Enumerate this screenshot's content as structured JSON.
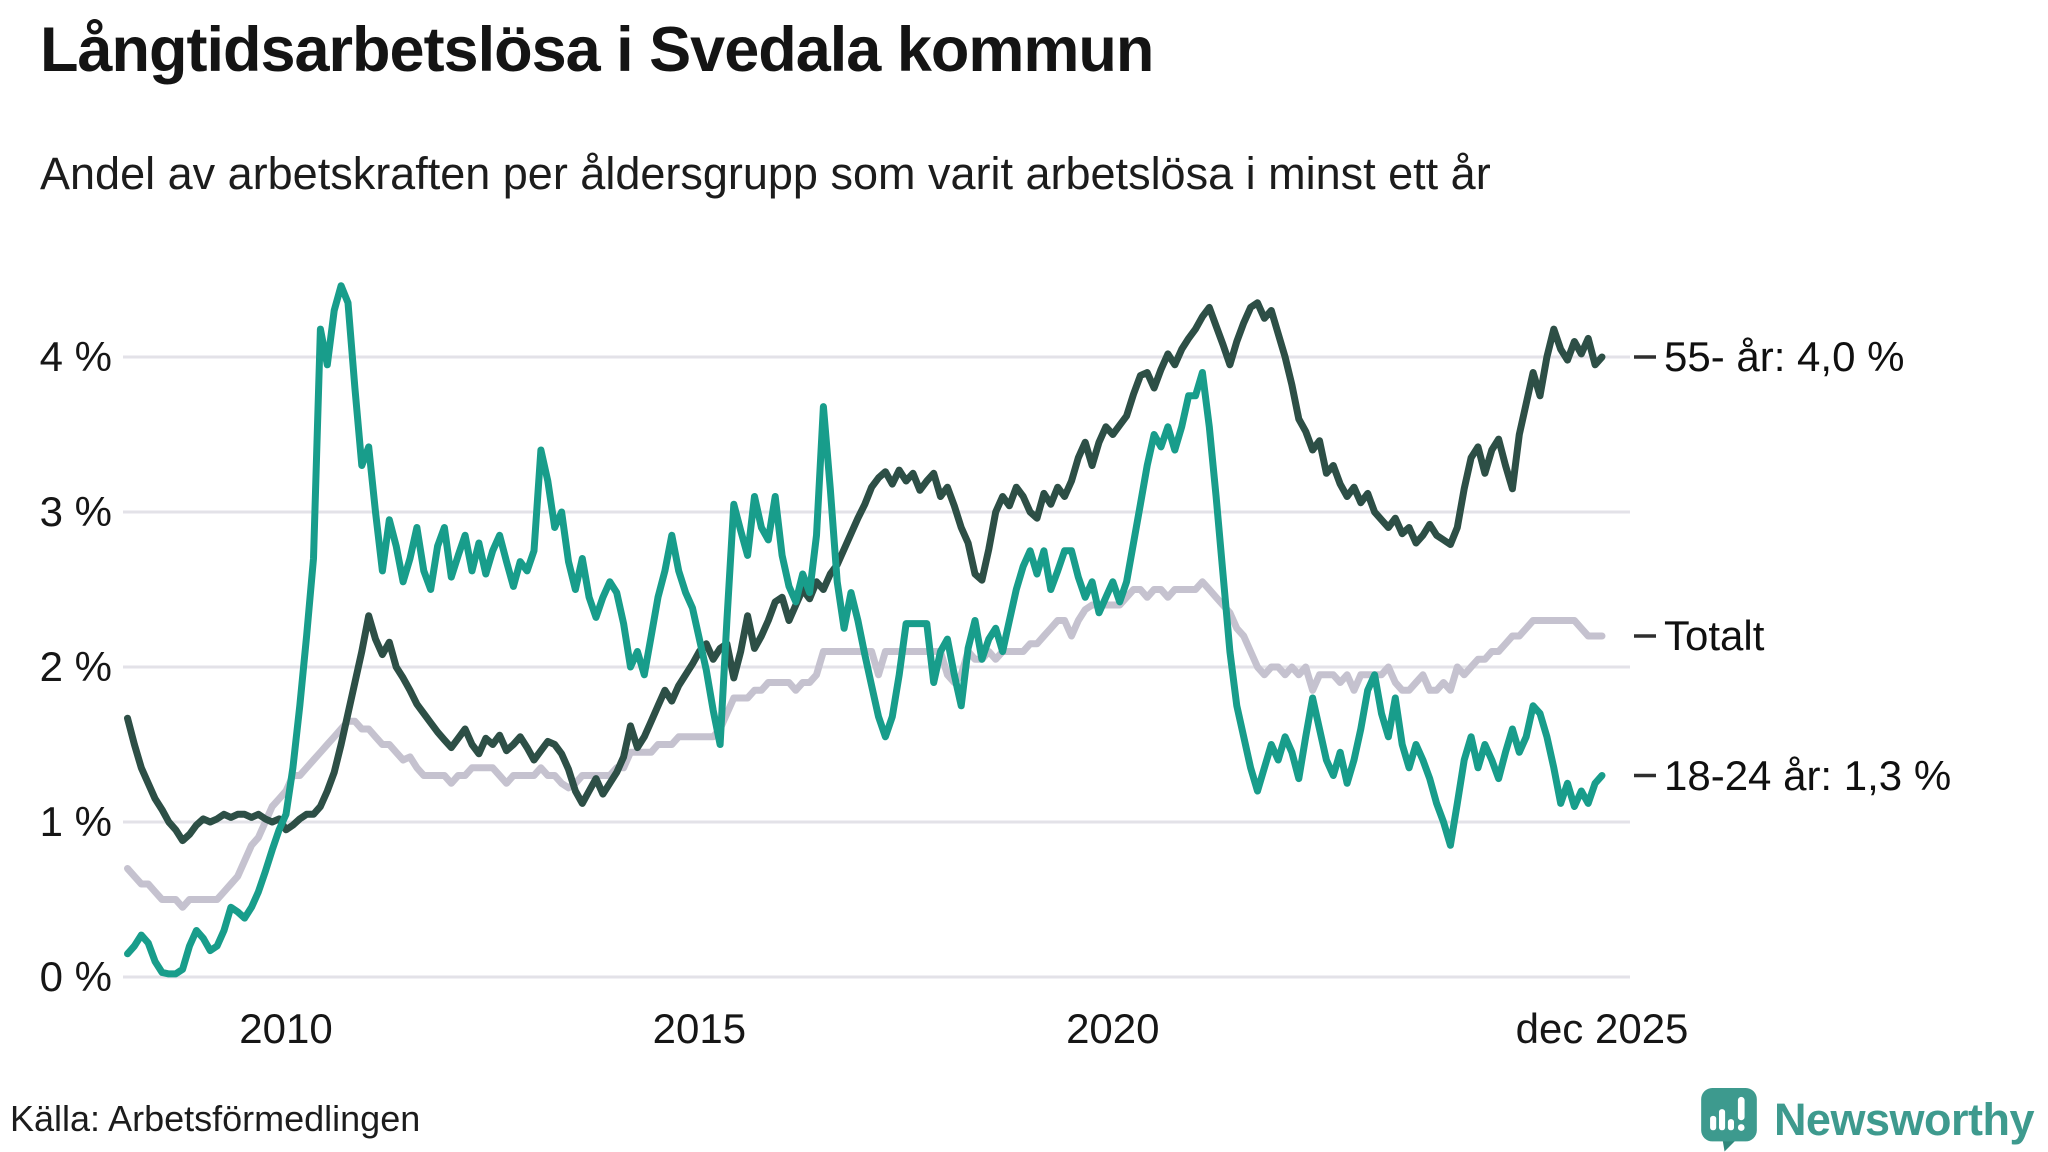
{
  "header": {
    "title": "Långtidsarbetslösa i Svedala kommun",
    "subtitle": "Andel av arbetskraften per åldersgrupp som varit arbetslösa i minst ett år"
  },
  "footer": {
    "source": "Källa: Arbetsförmedlingen",
    "brand": "Newsworthy"
  },
  "colors": {
    "age_55": "#2d4f46",
    "age_18_24": "#189d8b",
    "total": "#c5c2cf",
    "gridline": "#e3e2e8",
    "tick_dash": "#2f2f2f",
    "logo_teal": "#3d9a8e",
    "logo_tail": "#2f887c"
  },
  "chart_data": {
    "type": "line",
    "title": "Långtidsarbetslösa i Svedala kommun",
    "subtitle": "Andel av arbetskraften per åldersgrupp som varit arbetslösa i minst ett år",
    "x_start": "2008-02",
    "x_end": "2025-12",
    "x_step": "month",
    "ylim": [
      0,
      4.6
    ],
    "grid": true,
    "legend_position": "right-of-line-ends",
    "y_ticks": [
      {
        "label": "4 %",
        "value": 4
      },
      {
        "label": "3 %",
        "value": 3
      },
      {
        "label": "2 %",
        "value": 2
      },
      {
        "label": "1 %",
        "value": 1
      },
      {
        "label": "0 %",
        "value": 0
      }
    ],
    "x_ticks": [
      {
        "label": "2010",
        "t": 2010.0
      },
      {
        "label": "2015",
        "t": 2015.0
      },
      {
        "label": "2020",
        "t": 2020.0
      },
      {
        "label": "dec 2025",
        "t": 2025.917
      }
    ],
    "series": [
      {
        "name": "55- år",
        "key": "55-ar",
        "end_label": "55- år: 4,0 %",
        "end_value": 4.0,
        "color": "#2d4f46",
        "draw_order": 2,
        "values": [
          1.67,
          1.5,
          1.35,
          1.25,
          1.15,
          1.08,
          1.0,
          0.95,
          0.88,
          0.92,
          0.98,
          1.02,
          1.0,
          1.02,
          1.05,
          1.03,
          1.05,
          1.05,
          1.03,
          1.05,
          1.02,
          1.0,
          1.02,
          0.95,
          0.98,
          1.02,
          1.05,
          1.05,
          1.1,
          1.2,
          1.32,
          1.5,
          1.7,
          1.9,
          2.1,
          2.33,
          2.18,
          2.08,
          2.16,
          2.0,
          1.93,
          1.85,
          1.76,
          1.7,
          1.64,
          1.58,
          1.53,
          1.48,
          1.54,
          1.6,
          1.5,
          1.44,
          1.54,
          1.5,
          1.56,
          1.46,
          1.5,
          1.55,
          1.48,
          1.4,
          1.46,
          1.52,
          1.5,
          1.44,
          1.34,
          1.2,
          1.12,
          1.2,
          1.28,
          1.18,
          1.25,
          1.32,
          1.42,
          1.62,
          1.48,
          1.55,
          1.65,
          1.75,
          1.85,
          1.78,
          1.88,
          1.95,
          2.02,
          2.1,
          2.15,
          2.05,
          2.12,
          2.15,
          1.93,
          2.1,
          2.33,
          2.12,
          2.2,
          2.3,
          2.42,
          2.45,
          2.3,
          2.4,
          2.5,
          2.44,
          2.55,
          2.5,
          2.6,
          2.66,
          2.76,
          2.86,
          2.96,
          3.05,
          3.16,
          3.22,
          3.26,
          3.18,
          3.27,
          3.2,
          3.25,
          3.14,
          3.2,
          3.25,
          3.1,
          3.16,
          3.04,
          2.9,
          2.8,
          2.6,
          2.56,
          2.76,
          3.0,
          3.1,
          3.04,
          3.16,
          3.1,
          3.0,
          2.96,
          3.12,
          3.05,
          3.16,
          3.1,
          3.2,
          3.35,
          3.45,
          3.3,
          3.45,
          3.55,
          3.5,
          3.56,
          3.62,
          3.76,
          3.88,
          3.9,
          3.8,
          3.92,
          4.02,
          3.95,
          4.05,
          4.12,
          4.18,
          4.26,
          4.32,
          4.2,
          4.08,
          3.95,
          4.1,
          4.22,
          4.32,
          4.35,
          4.25,
          4.3,
          4.15,
          4.0,
          3.82,
          3.6,
          3.52,
          3.4,
          3.46,
          3.25,
          3.3,
          3.18,
          3.1,
          3.16,
          3.06,
          3.12,
          3.0,
          2.95,
          2.9,
          2.96,
          2.86,
          2.9,
          2.8,
          2.85,
          2.92,
          2.85,
          2.82,
          2.79,
          2.9,
          3.15,
          3.35,
          3.42,
          3.25,
          3.4,
          3.47,
          3.3,
          3.15,
          3.5,
          3.7,
          3.9,
          3.75,
          4.0,
          4.18,
          4.05,
          3.98,
          4.1,
          4.02,
          4.12,
          3.95,
          4.0
        ]
      },
      {
        "name": "Totalt",
        "key": "totalt",
        "end_label": "Totalt",
        "end_value": 2.2,
        "color": "#c5c2cf",
        "draw_order": 1,
        "values": [
          0.7,
          0.65,
          0.6,
          0.6,
          0.55,
          0.5,
          0.5,
          0.5,
          0.45,
          0.5,
          0.5,
          0.5,
          0.5,
          0.5,
          0.55,
          0.6,
          0.65,
          0.75,
          0.85,
          0.9,
          1.0,
          1.1,
          1.15,
          1.2,
          1.3,
          1.3,
          1.35,
          1.4,
          1.45,
          1.5,
          1.55,
          1.6,
          1.65,
          1.65,
          1.6,
          1.6,
          1.55,
          1.5,
          1.5,
          1.45,
          1.4,
          1.42,
          1.35,
          1.3,
          1.3,
          1.3,
          1.3,
          1.25,
          1.3,
          1.3,
          1.35,
          1.35,
          1.35,
          1.35,
          1.3,
          1.25,
          1.3,
          1.3,
          1.3,
          1.3,
          1.35,
          1.3,
          1.3,
          1.25,
          1.22,
          1.25,
          1.3,
          1.3,
          1.3,
          1.3,
          1.3,
          1.35,
          1.35,
          1.45,
          1.45,
          1.45,
          1.45,
          1.5,
          1.5,
          1.5,
          1.55,
          1.55,
          1.55,
          1.55,
          1.55,
          1.55,
          1.6,
          1.7,
          1.8,
          1.8,
          1.8,
          1.85,
          1.85,
          1.9,
          1.9,
          1.9,
          1.9,
          1.85,
          1.9,
          1.9,
          1.95,
          2.1,
          2.1,
          2.1,
          2.1,
          2.1,
          2.1,
          2.1,
          2.1,
          1.95,
          2.1,
          2.1,
          2.1,
          2.1,
          2.1,
          2.1,
          2.1,
          2.1,
          2.1,
          1.95,
          1.9,
          1.95,
          2.1,
          2.05,
          2.05,
          2.1,
          2.05,
          2.1,
          2.1,
          2.1,
          2.1,
          2.15,
          2.15,
          2.2,
          2.25,
          2.3,
          2.3,
          2.2,
          2.3,
          2.37,
          2.4,
          2.4,
          2.4,
          2.4,
          2.4,
          2.45,
          2.5,
          2.5,
          2.45,
          2.5,
          2.5,
          2.45,
          2.5,
          2.5,
          2.5,
          2.5,
          2.55,
          2.5,
          2.45,
          2.4,
          2.35,
          2.25,
          2.2,
          2.1,
          2.0,
          1.95,
          2.0,
          2.0,
          1.95,
          2.0,
          1.95,
          2.0,
          1.85,
          1.95,
          1.95,
          1.95,
          1.9,
          1.95,
          1.85,
          1.95,
          1.95,
          1.95,
          1.95,
          2.0,
          1.9,
          1.85,
          1.85,
          1.9,
          1.95,
          1.85,
          1.85,
          1.9,
          1.85,
          2.0,
          1.95,
          2.0,
          2.05,
          2.05,
          2.1,
          2.1,
          2.15,
          2.2,
          2.2,
          2.25,
          2.3,
          2.3,
          2.3,
          2.3,
          2.3,
          2.3,
          2.3,
          2.25,
          2.2,
          2.2,
          2.2
        ]
      },
      {
        "name": "18-24 år",
        "key": "18-24-ar",
        "end_label": "18-24 år: 1,3 %",
        "end_value": 1.3,
        "color": "#189d8b",
        "draw_order": 3,
        "values": [
          0.15,
          0.2,
          0.27,
          0.22,
          0.1,
          0.03,
          0.02,
          0.02,
          0.05,
          0.2,
          0.3,
          0.25,
          0.17,
          0.2,
          0.3,
          0.45,
          0.42,
          0.38,
          0.45,
          0.55,
          0.68,
          0.82,
          0.95,
          1.05,
          1.35,
          1.75,
          2.2,
          2.7,
          4.18,
          3.95,
          4.3,
          4.46,
          4.35,
          3.8,
          3.3,
          3.42,
          3.0,
          2.62,
          2.95,
          2.78,
          2.55,
          2.7,
          2.9,
          2.62,
          2.5,
          2.78,
          2.9,
          2.58,
          2.72,
          2.85,
          2.62,
          2.8,
          2.6,
          2.75,
          2.85,
          2.68,
          2.52,
          2.68,
          2.62,
          2.75,
          3.4,
          3.2,
          2.9,
          3.0,
          2.68,
          2.5,
          2.7,
          2.45,
          2.32,
          2.45,
          2.55,
          2.48,
          2.28,
          2.0,
          2.1,
          1.95,
          2.2,
          2.45,
          2.62,
          2.85,
          2.62,
          2.48,
          2.38,
          2.18,
          1.98,
          1.72,
          1.5,
          2.3,
          3.05,
          2.88,
          2.72,
          3.1,
          2.9,
          2.82,
          3.1,
          2.72,
          2.52,
          2.42,
          2.6,
          2.48,
          2.85,
          3.68,
          3.15,
          2.55,
          2.25,
          2.48,
          2.3,
          2.08,
          1.88,
          1.68,
          1.55,
          1.68,
          1.95,
          2.28,
          2.28,
          2.28,
          2.28,
          1.9,
          2.1,
          2.18,
          1.95,
          1.75,
          2.12,
          2.3,
          2.05,
          2.18,
          2.25,
          2.1,
          2.3,
          2.5,
          2.65,
          2.75,
          2.6,
          2.75,
          2.5,
          2.62,
          2.75,
          2.75,
          2.58,
          2.45,
          2.55,
          2.35,
          2.45,
          2.55,
          2.42,
          2.55,
          2.8,
          3.05,
          3.3,
          3.5,
          3.42,
          3.55,
          3.4,
          3.55,
          3.75,
          3.75,
          3.9,
          3.55,
          3.1,
          2.6,
          2.1,
          1.75,
          1.55,
          1.35,
          1.2,
          1.35,
          1.5,
          1.4,
          1.55,
          1.45,
          1.28,
          1.55,
          1.8,
          1.6,
          1.4,
          1.3,
          1.45,
          1.25,
          1.4,
          1.6,
          1.85,
          1.95,
          1.7,
          1.55,
          1.8,
          1.5,
          1.35,
          1.5,
          1.4,
          1.28,
          1.12,
          1.0,
          0.85,
          1.12,
          1.4,
          1.55,
          1.35,
          1.5,
          1.4,
          1.28,
          1.45,
          1.6,
          1.45,
          1.55,
          1.75,
          1.7,
          1.55,
          1.35,
          1.12,
          1.25,
          1.1,
          1.2,
          1.12,
          1.25,
          1.3
        ]
      }
    ]
  }
}
